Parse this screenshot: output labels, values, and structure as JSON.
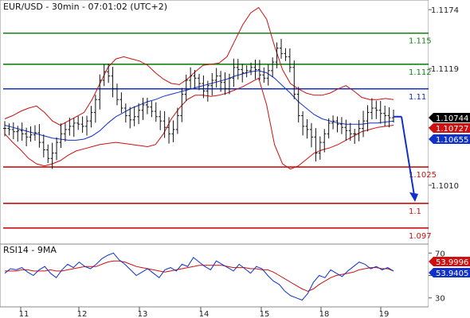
{
  "chart_data": {
    "type": "line",
    "title": "EUR/USD - 30min - 07:01:02 (UTC+2)",
    "instrument": "EUR/USD",
    "price_axis": {
      "ticks": [
        1.1174,
        1.1119,
        1.1064,
        1.101
      ],
      "tick_labels": [
        "1.1174",
        "1.1119",
        "",
        "1.1010"
      ],
      "ylim": [
        1.0955,
        1.1183
      ]
    },
    "x_axis": {
      "tick_labels": [
        "11",
        "12",
        "13",
        "14",
        "15",
        "18",
        "19"
      ]
    },
    "levels": [
      {
        "value": 1.1152,
        "label": "1.115",
        "color": "#148214"
      },
      {
        "value": 1.1123,
        "label": "1.112",
        "color": "#148214"
      },
      {
        "value": 1.11,
        "label": "1.11",
        "color": "#1030c8"
      },
      {
        "value": 1.1027,
        "label": "1.1025",
        "color": "#cc1010"
      },
      {
        "value": 1.0993,
        "label": "1.1",
        "color": "#cc1010"
      },
      {
        "value": 1.097,
        "label": "1.097",
        "color": "#cc1010"
      }
    ],
    "price_badges": [
      {
        "text": "1.10744",
        "bg": "#000000",
        "fg": "#ffffff"
      },
      {
        "text": "1.10727",
        "bg": "#cc1010",
        "fg": "#ffffff"
      },
      {
        "text": "1.10655",
        "bg": "#1030c8",
        "fg": "#ffffff"
      }
    ],
    "price_series": {
      "name": "EUR/USD",
      "values": [
        1.1063,
        1.1062,
        1.106,
        1.1061,
        1.1058,
        1.1055,
        1.1057,
        1.1059,
        1.105,
        1.1043,
        1.1035,
        1.104,
        1.105,
        1.1058,
        1.1062,
        1.1065,
        1.1068,
        1.1067,
        1.1065,
        1.107,
        1.1078,
        1.109,
        1.1108,
        1.1116,
        1.1112,
        1.11,
        1.109,
        1.1082,
        1.1075,
        1.1071,
        1.1074,
        1.108,
        1.1085,
        1.1083,
        1.1079,
        1.1074,
        1.107,
        1.1064,
        1.1058,
        1.1062,
        1.1075,
        1.1095,
        1.1108,
        1.1112,
        1.111,
        1.1105,
        1.1098,
        1.1103,
        1.1108,
        1.1112,
        1.1106,
        1.11,
        1.111,
        1.112,
        1.1118,
        1.1115,
        1.1117,
        1.112,
        1.1118,
        1.1113,
        1.111,
        1.1117,
        1.1125,
        1.1138,
        1.1133,
        1.113,
        1.112,
        1.1095,
        1.1075,
        1.1065,
        1.1062,
        1.1055,
        1.104,
        1.105,
        1.1058,
        1.1068,
        1.107,
        1.1067,
        1.1064,
        1.1061,
        1.1058,
        1.1058,
        1.1063,
        1.107,
        1.1078,
        1.1082,
        1.108,
        1.1077,
        1.1075,
        1.1073,
        1.1074
      ]
    },
    "bands": [
      {
        "name": "upper",
        "color": "#cc1010",
        "values": [
          1.1072,
          1.1075,
          1.1079,
          1.1082,
          1.1084,
          1.1078,
          1.107,
          1.1066,
          1.107,
          1.1074,
          1.1078,
          1.109,
          1.1105,
          1.112,
          1.1128,
          1.113,
          1.1128,
          1.1126,
          1.1122,
          1.1115,
          1.1109,
          1.1105,
          1.1104,
          1.1109,
          1.1116,
          1.1122,
          1.1123,
          1.1124,
          1.113,
          1.1145,
          1.116,
          1.1171,
          1.1176,
          1.1165,
          1.114,
          1.1118,
          1.1105,
          1.11,
          1.1096,
          1.1094,
          1.1094,
          1.1096,
          1.11,
          1.1103,
          1.1098,
          1.1092,
          1.109,
          1.109,
          1.1091,
          1.109
        ]
      },
      {
        "name": "lower",
        "color": "#cc1010",
        "values": [
          1.1058,
          1.105,
          1.1043,
          1.1035,
          1.103,
          1.1028,
          1.103,
          1.1033,
          1.1038,
          1.1042,
          1.1044,
          1.1046,
          1.1048,
          1.1049,
          1.105,
          1.1049,
          1.1048,
          1.1047,
          1.1046,
          1.1048,
          1.1058,
          1.1072,
          1.1082,
          1.109,
          1.1094,
          1.1094,
          1.1093,
          1.1094,
          1.1096,
          1.1099,
          1.1102,
          1.1106,
          1.111,
          1.1085,
          1.1048,
          1.103,
          1.1025,
          1.1028,
          1.1034,
          1.104,
          1.1043,
          1.1045,
          1.1048,
          1.1052,
          1.1056,
          1.106,
          1.1062,
          1.1064,
          1.1065,
          1.1066
        ]
      },
      {
        "name": "mid",
        "color": "#1030c8",
        "values": [
          1.1066,
          1.1064,
          1.1062,
          1.106,
          1.1058,
          1.1056,
          1.1054,
          1.1053,
          1.1052,
          1.1052,
          1.1053,
          1.1056,
          1.1061,
          1.1068,
          1.1074,
          1.1078,
          1.1082,
          1.1085,
          1.1088,
          1.109,
          1.1093,
          1.1095,
          1.1097,
          1.1099,
          1.1101,
          1.1103,
          1.1105,
          1.1107,
          1.1109,
          1.1112,
          1.1114,
          1.1116,
          1.1117,
          1.1115,
          1.111,
          1.1103,
          1.1096,
          1.1088,
          1.1082,
          1.1076,
          1.1072,
          1.107,
          1.1068,
          1.1067,
          1.1067,
          1.1067,
          1.1068,
          1.1068,
          1.1069,
          1.107
        ]
      }
    ],
    "forecast_arrow": {
      "from": 1.1074,
      "to": 1.0993,
      "color": "#1030c8"
    },
    "rsi": {
      "label": "RSI14 - 9MA",
      "ticks": [
        70,
        50,
        30
      ],
      "tick_labels": [
        "70",
        "",
        "30"
      ],
      "ylim": [
        22,
        78
      ],
      "badges": [
        {
          "text": "53.9996",
          "bg": "#cc1010",
          "fg": "#ffffff"
        },
        {
          "text": "53.9405",
          "bg": "#1030c8",
          "fg": "#ffffff"
        }
      ],
      "rsi_series": {
        "name": "RSI14",
        "color": "#1030c8",
        "values": [
          52,
          56,
          55,
          57,
          53,
          50,
          55,
          58,
          52,
          48,
          55,
          60,
          57,
          62,
          58,
          56,
          60,
          65,
          68,
          70,
          64,
          60,
          55,
          50,
          53,
          56,
          52,
          48,
          55,
          57,
          54,
          60,
          58,
          66,
          62,
          58,
          55,
          63,
          60,
          57,
          54,
          60,
          56,
          52,
          58,
          56,
          50,
          45,
          42,
          36,
          32,
          30,
          28,
          34,
          44,
          50,
          48,
          55,
          52,
          49,
          54,
          58,
          62,
          60,
          56,
          58,
          55,
          57,
          54
        ]
      },
      "ma_series": {
        "name": "9MA",
        "color": "#cc1010",
        "values": [
          54,
          54,
          54,
          55,
          55,
          54,
          54,
          54,
          55,
          54,
          54,
          55,
          56,
          57,
          58,
          58,
          58,
          60,
          62,
          63,
          63,
          62,
          60,
          58,
          57,
          56,
          55,
          54,
          53,
          54,
          55,
          56,
          57,
          58,
          59,
          59,
          59,
          59,
          59,
          58,
          57,
          57,
          57,
          56,
          56,
          55,
          55,
          53,
          50,
          47,
          44,
          41,
          38,
          36,
          38,
          42,
          45,
          48,
          50,
          51,
          52,
          53,
          55,
          56,
          57,
          57,
          56,
          56,
          54
        ]
      }
    }
  }
}
